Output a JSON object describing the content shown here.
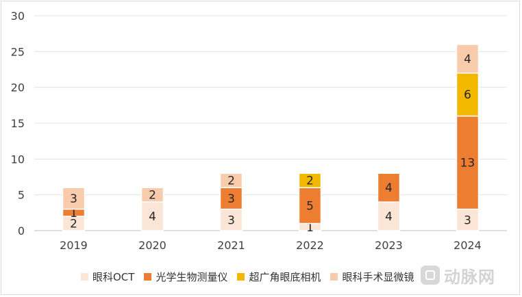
{
  "chart_data": {
    "type": "bar",
    "stacked": true,
    "title": "",
    "xlabel": "",
    "ylabel": "",
    "categories": [
      "2019",
      "2020",
      "2021",
      "2022",
      "2023",
      "2024"
    ],
    "ylim": [
      0,
      30
    ],
    "yticks": [
      "0",
      "5",
      "10",
      "15",
      "20",
      "25",
      "30"
    ],
    "grid": true,
    "legend_position": "bottom",
    "series": [
      {
        "name": "眼科OCT",
        "color": "#fbe5d6",
        "values": [
          2,
          4,
          3,
          1,
          4,
          3
        ]
      },
      {
        "name": "光学生物测量仪",
        "color": "#ed7d31",
        "values": [
          1,
          0,
          3,
          5,
          4,
          13
        ]
      },
      {
        "name": "超广角眼底相机",
        "color": "#f2b800",
        "values": [
          0,
          0,
          0,
          2,
          0,
          6
        ]
      },
      {
        "name": "眼科手术显微镜",
        "color": "#f8cbad",
        "values": [
          3,
          2,
          2,
          0,
          0,
          4
        ]
      }
    ]
  },
  "watermark": {
    "text": "动脉网",
    "icon": "logo-icon"
  }
}
